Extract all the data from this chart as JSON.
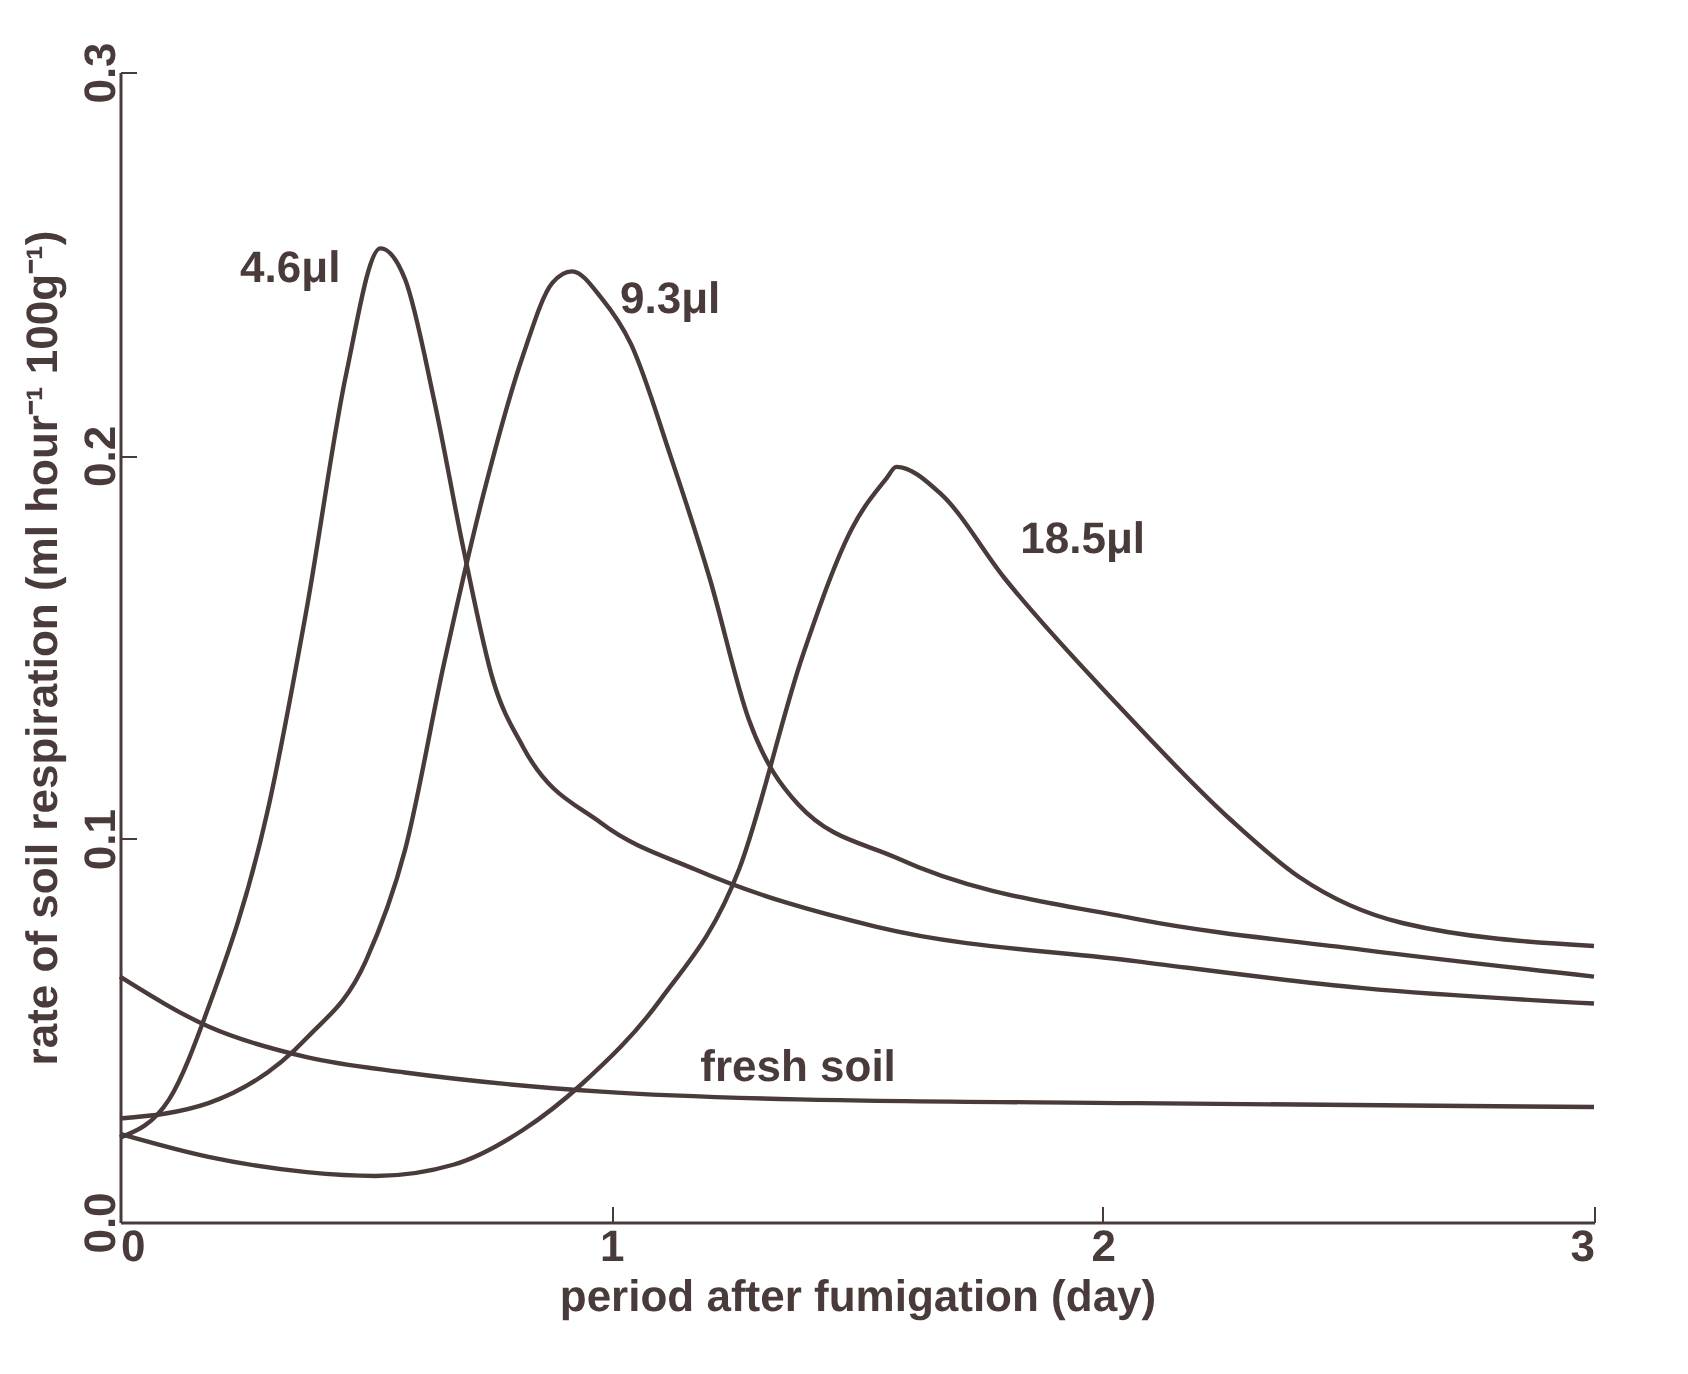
{
  "chart_data": {
    "type": "line",
    "xlabel": "period after fumigation (day)",
    "ylabel": "rate of soil respiration (ml hour⁻¹ 100g⁻¹)",
    "xlim": [
      0,
      3
    ],
    "xticks": [
      0,
      1,
      2,
      3
    ],
    "ylim": [
      0,
      0.3
    ],
    "yticks": [
      {
        "value": 0,
        "label": "0.0"
      },
      0.1,
      0.2,
      0.3
    ],
    "grid": false,
    "legend": false,
    "marker": "none",
    "line_style": "solid",
    "series": [
      {
        "name": "fresh soil",
        "color": "#4a3b3b",
        "x": [
          0,
          0.18,
          0.38,
          0.58,
          0.98,
          1.38,
          2.07,
          3
        ],
        "values": [
          0.064,
          0.051,
          0.043,
          0.039,
          0.034,
          0.032,
          0.031,
          0.03
        ]
      },
      {
        "name": "4.6μl",
        "color": "#4a3b3b",
        "x": [
          0,
          0.1,
          0.18,
          0.3,
          0.38,
          0.46,
          0.53,
          0.58,
          0.64,
          0.7,
          0.76,
          0.82,
          0.98,
          1.17,
          1.54,
          2.07,
          2.53,
          3
        ],
        "values": [
          0.022,
          0.032,
          0.056,
          0.107,
          0.16,
          0.221,
          0.254,
          0.246,
          0.214,
          0.175,
          0.141,
          0.124,
          0.104,
          0.092,
          0.077,
          0.068,
          0.061,
          0.057
        ]
      },
      {
        "name": "9.3μl",
        "color": "#4a3b3b",
        "x": [
          0,
          0.18,
          0.38,
          0.5,
          0.58,
          0.66,
          0.74,
          0.82,
          0.88,
          0.92,
          0.98,
          1.04,
          1.12,
          1.2,
          1.28,
          1.38,
          1.58,
          2.07,
          2.53,
          3
        ],
        "values": [
          0.027,
          0.031,
          0.048,
          0.068,
          0.097,
          0.146,
          0.19,
          0.226,
          0.245,
          0.248,
          0.241,
          0.229,
          0.2,
          0.168,
          0.131,
          0.109,
          0.095,
          0.079,
          0.071,
          0.064
        ]
      },
      {
        "name": "18.5μl",
        "color": "#4a3b3b",
        "x": [
          0,
          0.18,
          0.38,
          0.52,
          0.68,
          0.82,
          0.94,
          1.1,
          1.26,
          1.39,
          1.49,
          1.56,
          1.58,
          1.67,
          1.8,
          2.03,
          2.26,
          2.4,
          2.61,
          3
        ],
        "values": [
          0.023,
          0.017,
          0.013,
          0.012,
          0.015,
          0.024,
          0.036,
          0.058,
          0.092,
          0.148,
          0.181,
          0.194,
          0.197,
          0.19,
          0.168,
          0.135,
          0.105,
          0.09,
          0.078,
          0.072
        ]
      }
    ]
  }
}
